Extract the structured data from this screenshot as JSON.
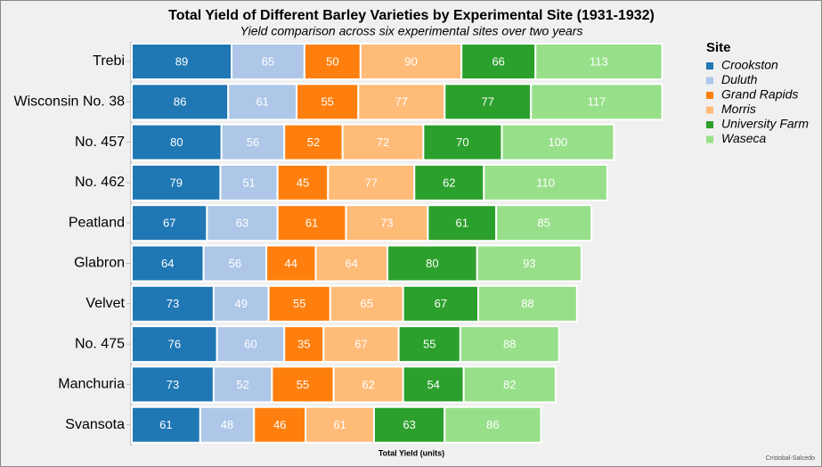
{
  "chart_data": {
    "type": "stacked-bar-horizontal",
    "title": "Total Yield of Different Barley Varieties by Experimental Site (1931-1932)",
    "subtitle": "Yield comparison across six experimental sites over two years",
    "x_label": "Total Yield (units)",
    "legend_title": "Site",
    "legend_position": "upper right",
    "credit": "Cristobal-Salcedo",
    "xlim": [
      0,
      610
    ],
    "categories": [
      "Trebi",
      "Wisconsin No. 38",
      "No. 457",
      "No. 462",
      "Peatland",
      "Glabron",
      "Velvet",
      "No. 475",
      "Manchuria",
      "Svansota"
    ],
    "series": [
      {
        "name": "Crookston",
        "color": "#1f77b4",
        "values": [
          89,
          86,
          80,
          79,
          67,
          64,
          73,
          76,
          73,
          61
        ]
      },
      {
        "name": "Duluth",
        "color": "#aec7e8",
        "values": [
          65,
          61,
          56,
          51,
          63,
          56,
          49,
          60,
          52,
          48
        ]
      },
      {
        "name": "Grand Rapids",
        "color": "#ff7f0e",
        "values": [
          50,
          55,
          52,
          45,
          61,
          44,
          55,
          35,
          55,
          46
        ]
      },
      {
        "name": "Morris",
        "color": "#ffbb78",
        "values": [
          90,
          77,
          72,
          77,
          73,
          64,
          65,
          67,
          62,
          61
        ]
      },
      {
        "name": "University Farm",
        "color": "#2ca02c",
        "values": [
          66,
          77,
          70,
          62,
          61,
          80,
          67,
          55,
          54,
          63
        ]
      },
      {
        "name": "Waseca",
        "color": "#98df8a",
        "values": [
          113,
          117,
          100,
          110,
          85,
          93,
          88,
          88,
          82,
          86
        ]
      }
    ]
  }
}
